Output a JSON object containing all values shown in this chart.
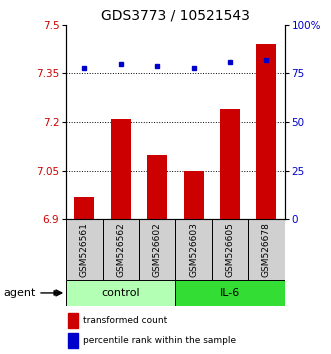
{
  "title": "GDS3773 / 10521543",
  "samples": [
    "GSM526561",
    "GSM526562",
    "GSM526602",
    "GSM526603",
    "GSM526605",
    "GSM526678"
  ],
  "bar_values": [
    6.97,
    7.21,
    7.1,
    7.05,
    7.24,
    7.44
  ],
  "percentile_values": [
    78,
    80,
    79,
    78,
    81,
    82
  ],
  "ylim_left": [
    6.9,
    7.5
  ],
  "ylim_right": [
    0,
    100
  ],
  "yticks_left": [
    6.9,
    7.05,
    7.2,
    7.35,
    7.5
  ],
  "yticks_right": [
    0,
    25,
    50,
    75,
    100
  ],
  "ytick_labels_left": [
    "6.9",
    "7.05",
    "7.2",
    "7.35",
    "7.5"
  ],
  "ytick_labels_right": [
    "0",
    "25",
    "50",
    "75",
    "100%"
  ],
  "hlines": [
    7.05,
    7.2,
    7.35
  ],
  "bar_color": "#cc0000",
  "dot_color": "#0000cc",
  "bar_width": 0.55,
  "control_color": "#b3ffb3",
  "il6_color": "#33dd33",
  "agent_label": "agent",
  "legend_bar_label": "transformed count",
  "legend_dot_label": "percentile rank within the sample",
  "title_fontsize": 10,
  "tick_fontsize": 7.5,
  "label_fontsize": 8,
  "sample_label_fontsize": 6.5,
  "group_label_fontsize": 8
}
